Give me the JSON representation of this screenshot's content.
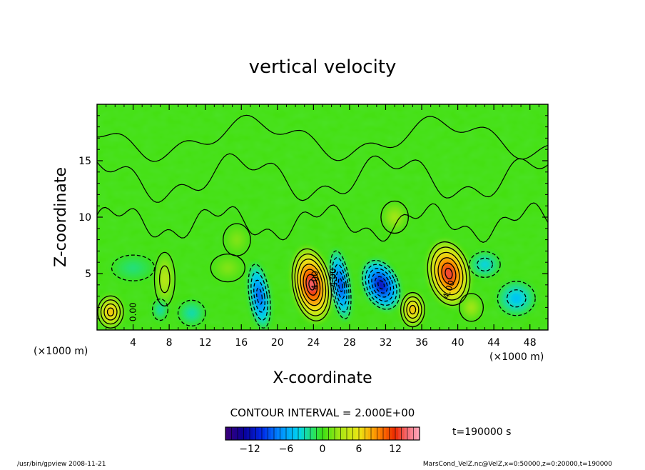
{
  "chart_data": {
    "type": "heatmap",
    "title": "vertical velocity",
    "xlabel": "X-coordinate",
    "ylabel": "Z-coordinate",
    "x_unit_left": "(×1000 m)",
    "x_unit_right": "(×1000 m)",
    "xlim": [
      0,
      50
    ],
    "ylim": [
      0,
      20
    ],
    "xticks": [
      4,
      8,
      12,
      16,
      20,
      24,
      28,
      32,
      36,
      40,
      44,
      48
    ],
    "yticks": [
      5,
      10,
      15
    ],
    "contour_interval_text": "CONTOUR INTERVAL = 2.000E+00",
    "time_text": "t=190000 s",
    "colorbar": {
      "range": [
        -16,
        16
      ],
      "ticks": [
        -12,
        -6,
        0,
        6,
        12
      ]
    },
    "contour_labels": [
      "0.00",
      "4.00",
      "-4.00",
      "4.00"
    ],
    "features": [
      {
        "x": 23.8,
        "z": 4.0,
        "value": 14,
        "sx": 2.2,
        "sz": 3.4,
        "tilt": 0.25
      },
      {
        "x": 39.0,
        "z": 5.0,
        "value": 13,
        "sx": 2.4,
        "sz": 3.0,
        "tilt": 0.3
      },
      {
        "x": 35.0,
        "z": 1.8,
        "value": 8,
        "sx": 1.4,
        "sz": 1.6,
        "tilt": 0.0
      },
      {
        "x": 1.5,
        "z": 1.6,
        "value": 8,
        "sx": 1.5,
        "sz": 1.5,
        "tilt": 0.0
      },
      {
        "x": 7.5,
        "z": 4.5,
        "value": 4,
        "sx": 1.2,
        "sz": 2.5,
        "tilt": 0.0
      },
      {
        "x": 18.0,
        "z": 3.0,
        "value": -9,
        "sx": 1.2,
        "sz": 3.0,
        "tilt": 0.2
      },
      {
        "x": 27.0,
        "z": 4.0,
        "value": -10,
        "sx": 1.1,
        "sz": 3.2,
        "tilt": 0.2
      },
      {
        "x": 31.5,
        "z": 4.0,
        "value": -12,
        "sx": 2.0,
        "sz": 2.4,
        "tilt": 0.6
      },
      {
        "x": 46.5,
        "z": 2.8,
        "value": -5,
        "sx": 2.2,
        "sz": 1.6,
        "tilt": 0.0
      },
      {
        "x": 43.0,
        "z": 5.8,
        "value": -4,
        "sx": 1.8,
        "sz": 1.2,
        "tilt": 0.0
      },
      {
        "x": 10.5,
        "z": 1.5,
        "value": -3,
        "sx": 1.6,
        "sz": 1.2,
        "tilt": 0.0
      },
      {
        "x": 7.0,
        "z": 1.8,
        "value": -3,
        "sx": 0.9,
        "sz": 1.0,
        "tilt": 0.0
      },
      {
        "x": 4.0,
        "z": 5.5,
        "value": -2,
        "sx": 2.5,
        "sz": 1.2,
        "tilt": 0.0
      },
      {
        "x": 14.5,
        "z": 5.5,
        "value": 2,
        "sx": 2.0,
        "sz": 1.3,
        "tilt": 0.0
      },
      {
        "x": 41.5,
        "z": 2.0,
        "value": 3,
        "sx": 1.4,
        "sz": 1.3,
        "tilt": 0.0
      },
      {
        "x": 33.0,
        "z": 10.0,
        "value": 3,
        "sx": 1.6,
        "sz": 1.5,
        "tilt": 0.0
      },
      {
        "x": 15.5,
        "z": 8.0,
        "value": 2,
        "sx": 1.6,
        "sz": 1.5,
        "tilt": 0.0
      }
    ]
  },
  "footer": {
    "left_text": "/usr/bin/gpview   2008-11-21",
    "right_text": "MarsCond_VelZ.nc@VelZ,x=0:50000,z=0:20000,t=190000"
  }
}
